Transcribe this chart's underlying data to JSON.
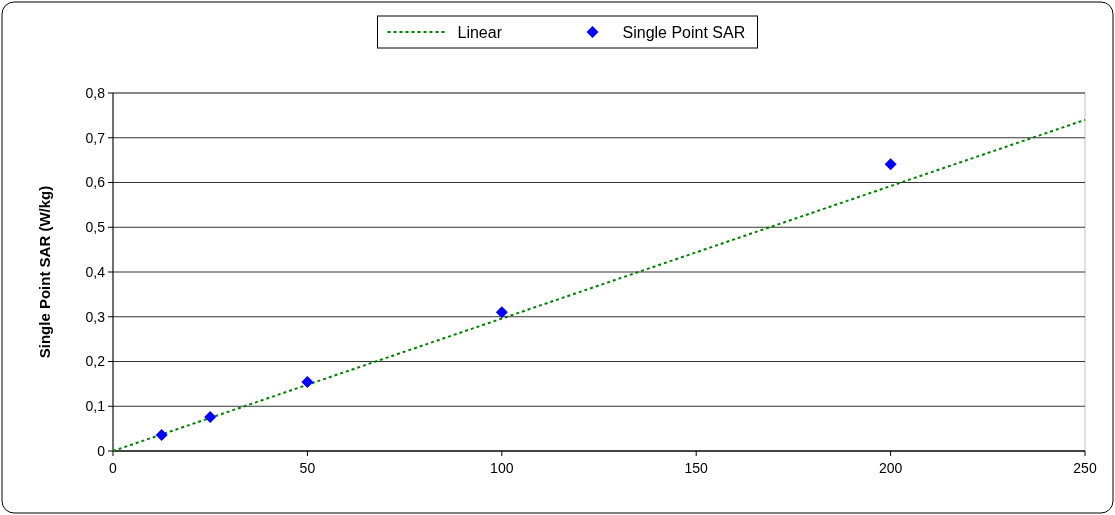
{
  "chart_data": {
    "type": "scatter",
    "ylabel": "Single Point SAR (W/kg)",
    "xlim": [
      0,
      250
    ],
    "xticks": [
      0,
      50,
      100,
      150,
      200,
      250
    ],
    "ylim": [
      0,
      0.8
    ],
    "yticks": [
      {
        "value": 0,
        "label": "0"
      },
      {
        "value": 0.1,
        "label": "0,1"
      },
      {
        "value": 0.2,
        "label": "0,2"
      },
      {
        "value": 0.3,
        "label": "0,3"
      },
      {
        "value": 0.4,
        "label": "0,4"
      },
      {
        "value": 0.5,
        "label": "0,5"
      },
      {
        "value": 0.6,
        "label": "0,6"
      },
      {
        "value": 0.7,
        "label": "0,7"
      },
      {
        "value": 0.8,
        "label": "0,8"
      }
    ],
    "grid": "y",
    "legend": "top",
    "series": [
      {
        "name": "Linear",
        "type": "line",
        "color": "#008000",
        "line_style": "dotted",
        "marker": "none",
        "x": [
          0,
          250
        ],
        "values": [
          0,
          0.74
        ]
      },
      {
        "name": "Single Point SAR",
        "type": "scatter",
        "color": "#0000ff",
        "marker": "diamond",
        "x": [
          12.5,
          25,
          50,
          100,
          200
        ],
        "values": [
          0.036,
          0.076,
          0.154,
          0.31,
          0.641
        ]
      }
    ]
  }
}
